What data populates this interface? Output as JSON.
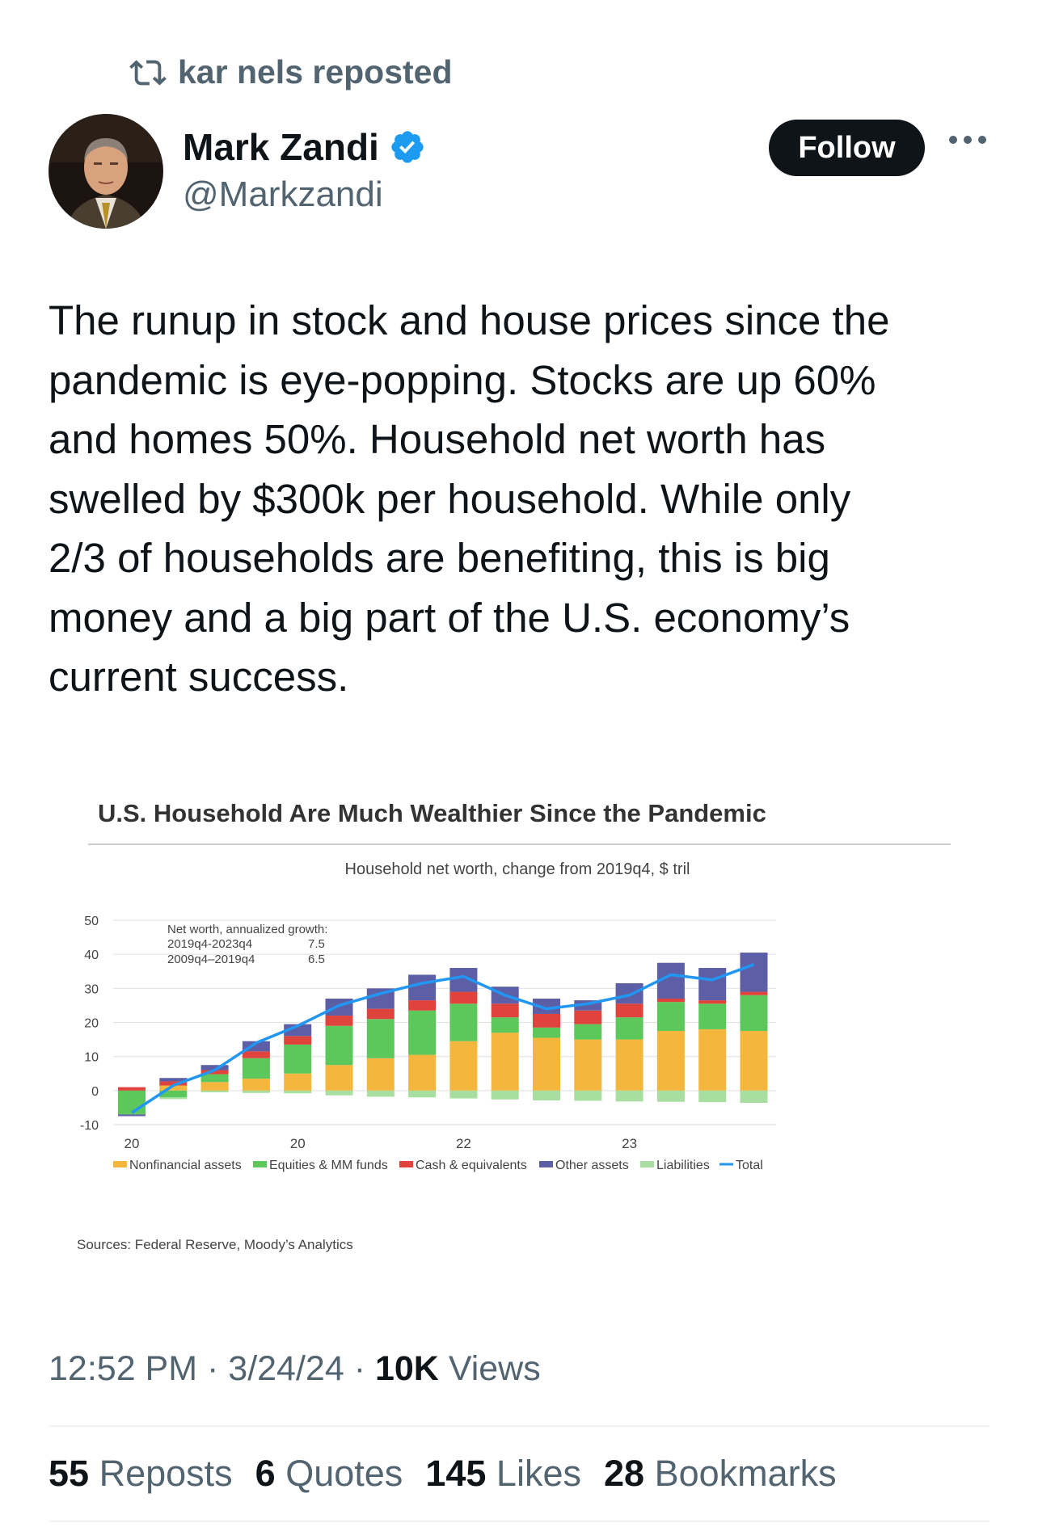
{
  "repost": {
    "text": "kar nels reposted"
  },
  "author": {
    "name": "Mark Zandi",
    "handle": "@Markzandi",
    "verified": true
  },
  "follow_label": "Follow",
  "tweet_text": "The runup in stock and house prices since the\npandemic is eye-popping. Stocks are up 60%\nand homes 50%. Household net worth has\nswelled by $300k per household. While only\n2/3 of households are benefiting, this is big\nmoney and a big part of the U.S. economy’s\ncurrent success.",
  "meta": {
    "time": "12:52 PM",
    "date": "3/24/24",
    "views_count": "10K",
    "views_label": "Views",
    "sep": " · "
  },
  "stats": [
    {
      "count": "55",
      "label": "Reposts"
    },
    {
      "count": "6",
      "label": "Quotes"
    },
    {
      "count": "145",
      "label": "Likes"
    },
    {
      "count": "28",
      "label": "Bookmarks"
    }
  ],
  "colors": {
    "accent": "#1d9bf0",
    "text": "#0f1419",
    "muted": "#536471"
  },
  "chart_data": {
    "type": "bar",
    "title": "U.S. Household Are Much Wealthier Since the Pandemic",
    "subtitle": "Household net worth, change from 2019q4, $ tril",
    "source": "Sources: Federal Reserve, Moody’s Analytics",
    "annotation": {
      "header": "Net worth, annualized  growth:",
      "rows": [
        {
          "period": "2019q4-2023q4",
          "value": "7.5"
        },
        {
          "period": "2009q4–2019q4",
          "value": "6.5"
        }
      ]
    },
    "ylim": [
      -10,
      50
    ],
    "yticks": [
      "50",
      "40",
      "30",
      "20",
      "10",
      "0",
      "-10"
    ],
    "xtick_labels": [
      {
        "label": "20",
        "bar": 0
      },
      {
        "label": "20",
        "bar": 4
      },
      {
        "label": "22",
        "bar": 8
      },
      {
        "label": "23",
        "bar": 12
      }
    ],
    "series": [
      {
        "name": "Nonfinancial assets",
        "color": "#f4b63c",
        "values": [
          0,
          1.5,
          2.5,
          3.5,
          5,
          7.5,
          9.5,
          10.5,
          14.5,
          17,
          15.5,
          15,
          15,
          17.5,
          18,
          17.5
        ]
      },
      {
        "name": "Equities & MM funds",
        "color": "#5cc85c",
        "values": [
          -7,
          -2,
          2.3,
          6,
          8.5,
          11.5,
          11.5,
          13,
          11,
          4.5,
          3,
          4.5,
          6.5,
          8.5,
          7.5,
          10.5
        ]
      },
      {
        "name": "Cash & equivalents",
        "color": "#e0423c",
        "values": [
          1,
          1.2,
          1.2,
          2,
          2.5,
          3,
          3,
          3,
          3.5,
          4,
          4,
          4,
          4,
          1,
          1,
          1
        ]
      },
      {
        "name": "Other assets",
        "color": "#5c5ea6",
        "values": [
          -0.5,
          1,
          1.5,
          3,
          3.5,
          5,
          6,
          7.5,
          7,
          5,
          4.5,
          3,
          6,
          10.5,
          9.5,
          11.5
        ]
      },
      {
        "name": "Liabilities",
        "color": "#a8dea0",
        "values": [
          0,
          -0.5,
          -0.5,
          -0.7,
          -0.8,
          -1.4,
          -1.8,
          -2,
          -2.3,
          -2.6,
          -2.9,
          -3,
          -3.2,
          -3.3,
          -3.4,
          -3.6
        ]
      }
    ],
    "total": {
      "name": "Total",
      "color": "#2196f3",
      "values": [
        -6.5,
        1.5,
        6,
        14,
        19,
        25,
        28.5,
        31.5,
        33.5,
        28,
        24,
        25.5,
        28,
        34,
        32.5,
        37
      ]
    },
    "grid": true,
    "legend": "bottom"
  }
}
